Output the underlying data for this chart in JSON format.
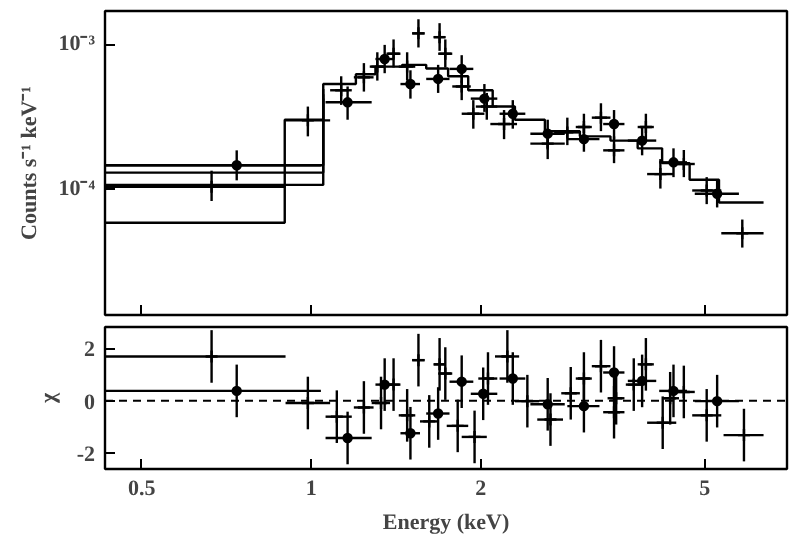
{
  "chart_data": [
    {
      "type": "scatter",
      "ylabel": "Counts s⁻¹ keV⁻¹",
      "log": "xy",
      "tick_labels": "y",
      "xlim": [
        0.43,
        7.0
      ],
      "xticks": [
        0.5,
        1,
        2,
        5
      ],
      "ylim": [
        1.33e-05,
        0.0017
      ],
      "yticks": [
        {
          "value": 0.001,
          "label": "10⁻³"
        },
        {
          "value": 0.0001,
          "label": "10⁻⁴"
        }
      ],
      "series": [
        {
          "type": "step",
          "color": "#000000",
          "x": [
            0.43,
            0.897,
            1.05,
            1.2,
            1.3,
            1.45,
            1.6,
            1.75,
            1.9,
            2.1,
            2.3,
            2.6,
            3.0,
            3.4,
            3.8,
            4.2,
            4.7,
            5.3,
            6.36
          ],
          "values": [
            5.8e-05,
            0.0003,
            0.00053,
            0.00062,
            0.0007,
            0.00072,
            0.00068,
            0.0006,
            0.00048,
            0.00037,
            0.0003,
            0.00025,
            0.00023,
            0.000215,
            0.00019,
            0.00015,
            0.000115,
            8e-05,
            8e-05
          ]
        },
        {
          "type": "step",
          "color": "#000000",
          "x": [
            0.43,
            1.05
          ],
          "values": [
            0.000106,
            0.00049
          ]
        },
        {
          "type": "step",
          "color": "#000000",
          "x": [
            0.43,
            1.05
          ],
          "values": [
            0.000129,
            0.00045
          ]
        },
        {
          "type": "step",
          "color": "#000000",
          "x": [
            0.43,
            1.05
          ],
          "values": [
            0.000145,
            0.00042
          ]
        },
        {
          "type": "scatter",
          "marker": "circle",
          "color": "#000000",
          "x": [
            0.737,
            1.16,
            1.35,
            1.5,
            1.68,
            1.85,
            2.03,
            2.28,
            2.63,
            3.05,
            3.45,
            3.87,
            4.4,
            5.26
          ],
          "values": [
            0.000145,
            0.000396,
            0.00079,
            0.00053,
            0.000575,
            0.000675,
            0.00042,
            0.00033,
            0.00024,
            0.00022,
            0.00028,
            0.000215,
            0.000152,
            9.2e-05
          ],
          "errors": [
            [
              0.000114,
              0.000184
            ],
            [
              0.0003,
              0.00051
            ],
            [
              0.00063,
              0.00099
            ],
            [
              0.00042,
              0.00066
            ],
            [
              0.00046,
              0.00072
            ],
            [
              0.00054,
              0.00084
            ],
            [
              0.00034,
              0.00053
            ],
            [
              0.00026,
              0.00041
            ],
            [
              0.00019,
              0.0003
            ],
            [
              0.00018,
              0.00028
            ],
            [
              0.00022,
              0.00035
            ],
            [
              0.00017,
              0.00027
            ],
            [
              0.00012,
              0.00019
            ],
            [
              7.4e-05,
              0.000115
            ]
          ],
          "xerrors": [
            [
              0.43,
              1.04
            ],
            [
              1.06,
              1.28
            ],
            [
              1.3,
              1.4
            ],
            [
              1.44,
              1.56
            ],
            [
              1.6,
              1.76
            ],
            [
              1.76,
              1.94
            ],
            [
              1.92,
              2.14
            ],
            [
              2.16,
              2.4
            ],
            [
              2.45,
              2.82
            ],
            [
              2.85,
              3.25
            ],
            [
              3.3,
              3.6
            ],
            [
              3.65,
              4.1
            ],
            [
              4.15,
              4.65
            ],
            [
              4.8,
              5.75
            ]
          ]
        },
        {
          "type": "scatter",
          "marker": "cross",
          "color": "#000000",
          "x": [
            0.665,
            0.986,
            1.13,
            1.24,
            1.31,
            1.4,
            1.48,
            1.55,
            1.69,
            1.73,
            1.85,
            1.94,
            2.05,
            2.2,
            2.63,
            2.85,
            3.05,
            3.27,
            3.45,
            3.93,
            4.17,
            4.59,
            5.04,
            5.83
          ],
          "values": [
            0.000103,
            0.000297,
            0.00048,
            0.00059,
            0.0007,
            0.00086,
            0.0007,
            0.00119,
            0.00112,
            0.00086,
            0.00051,
            0.00033,
            0.00037,
            0.00028,
            0.000205,
            0.000245,
            0.000267,
            0.00031,
            0.000184,
            0.000267,
            0.000126,
            0.000148,
            9.7e-05,
            4.9e-05
          ],
          "errors": [
            [
              8.2e-05,
              0.000133
            ],
            [
              0.00023,
              0.00037
            ],
            [
              0.00038,
              0.0006
            ],
            [
              0.00047,
              0.00074
            ],
            [
              0.00056,
              0.00088
            ],
            [
              0.00069,
              0.00108
            ],
            [
              0.00056,
              0.00088
            ],
            [
              0.00095,
              0.00149
            ],
            [
              0.0009,
              0.0014
            ],
            [
              0.00069,
              0.00108
            ],
            [
              0.00041,
              0.00064
            ],
            [
              0.00026,
              0.00041
            ],
            [
              0.0003,
              0.00046
            ],
            [
              0.00022,
              0.00035
            ],
            [
              0.00016,
              0.00026
            ],
            [
              0.0002,
              0.00031
            ],
            [
              0.00021,
              0.00033
            ],
            [
              0.00025,
              0.00039
            ],
            [
              0.00015,
              0.00023
            ],
            [
              0.00021,
              0.00033
            ],
            [
              0.0001,
              0.00016
            ],
            [
              0.00012,
              0.000185
            ],
            [
              7.8e-05,
              0.00012
            ],
            [
              3.9e-05,
              6.1e-05
            ]
          ],
          "xerrors": [
            [
              0.43,
              0.9
            ],
            [
              0.9,
              1.08
            ],
            [
              1.08,
              1.18
            ],
            [
              1.19,
              1.29
            ],
            [
              1.27,
              1.35
            ],
            [
              1.36,
              1.44
            ],
            [
              1.43,
              1.53
            ],
            [
              1.51,
              1.59
            ],
            [
              1.65,
              1.73
            ],
            [
              1.68,
              1.78
            ],
            [
              1.78,
              1.92
            ],
            [
              1.85,
              2.03
            ],
            [
              1.96,
              2.14
            ],
            [
              2.08,
              2.32
            ],
            [
              2.45,
              2.82
            ],
            [
              2.7,
              3.0
            ],
            [
              2.95,
              3.15
            ],
            [
              3.15,
              3.4
            ],
            [
              3.3,
              3.6
            ],
            [
              3.8,
              4.06
            ],
            [
              3.95,
              4.4
            ],
            [
              4.4,
              4.8
            ],
            [
              4.75,
              5.35
            ],
            [
              5.35,
              6.36
            ]
          ]
        }
      ]
    },
    {
      "type": "scatter",
      "xlabel": "Energy (keV)",
      "ylabel": "χ",
      "log": "x",
      "xlim": [
        0.43,
        7.0
      ],
      "xticks": [
        0.5,
        1,
        2,
        5
      ],
      "ylim": [
        -2.6,
        2.8
      ],
      "yticks": [
        -2,
        0,
        2
      ],
      "ref_lines": [
        {
          "axis": "y",
          "value": 0,
          "line_style": "dashed",
          "color": "#000000"
        }
      ],
      "series": [
        {
          "type": "scatter",
          "marker": "circle",
          "color": "#000000",
          "x": [
            0.737,
            1.16,
            1.35,
            1.5,
            1.68,
            1.85,
            2.02,
            2.28,
            2.63,
            3.05,
            3.45,
            3.87,
            4.4,
            5.26
          ],
          "values": [
            0.37,
            -1.42,
            0.61,
            -1.24,
            -0.49,
            0.72,
            0.26,
            0.84,
            -0.14,
            -0.21,
            1.07,
            0.75,
            0.37,
            -0.02
          ],
          "errors": [
            1,
            1,
            1,
            1,
            1,
            1,
            1,
            1,
            1,
            1,
            1,
            1,
            1,
            1
          ],
          "xerrors": [
            [
              0.43,
              1.04
            ],
            [
              1.06,
              1.28
            ],
            [
              1.3,
              1.4
            ],
            [
              1.44,
              1.56
            ],
            [
              1.6,
              1.76
            ],
            [
              1.76,
              1.94
            ],
            [
              1.92,
              2.14
            ],
            [
              2.16,
              2.4
            ],
            [
              2.45,
              2.82
            ],
            [
              2.85,
              3.25
            ],
            [
              3.3,
              3.6
            ],
            [
              3.65,
              4.1
            ],
            [
              4.15,
              4.65
            ],
            [
              4.8,
              5.75
            ]
          ]
        },
        {
          "type": "scatter",
          "marker": "cross",
          "color": "#000000",
          "x": [
            0.665,
            0.986,
            1.11,
            1.24,
            1.33,
            1.4,
            1.48,
            1.55,
            1.62,
            1.69,
            1.73,
            1.82,
            1.95,
            2.06,
            2.23,
            2.42,
            2.66,
            2.89,
            3.05,
            3.27,
            3.48,
            3.45,
            3.93,
            3.74,
            4.21,
            4.59,
            4.34,
            5.04,
            5.87
          ],
          "values": [
            1.68,
            -0.09,
            -0.61,
            -0.26,
            -0.09,
            0.61,
            -0.56,
            1.54,
            -0.79,
            1.38,
            1.03,
            -0.96,
            -1.38,
            0.84,
            1.68,
            -0.02,
            -0.72,
            0.28,
            0.84,
            1.31,
            0.09,
            -0.44,
            1.38,
            0.61,
            -0.84,
            0.33,
            0.09,
            -0.56,
            -1.31
          ],
          "errors": [
            1,
            1,
            1,
            1,
            1,
            1,
            1,
            1,
            1,
            1,
            1,
            1,
            1,
            1,
            1,
            1,
            1,
            1,
            1,
            1,
            1,
            1,
            1,
            1,
            1,
            1,
            1,
            1,
            1
          ],
          "xerrors": [
            [
              0.43,
              0.9
            ],
            [
              0.9,
              1.08
            ],
            [
              1.06,
              1.18
            ],
            [
              1.19,
              1.29
            ],
            [
              1.28,
              1.38
            ],
            [
              1.36,
              1.44
            ],
            [
              1.43,
              1.53
            ],
            [
              1.51,
              1.59
            ],
            [
              1.56,
              1.68
            ],
            [
              1.65,
              1.73
            ],
            [
              1.68,
              1.78
            ],
            [
              1.74,
              1.9
            ],
            [
              1.85,
              2.05
            ],
            [
              1.98,
              2.14
            ],
            [
              2.12,
              2.34
            ],
            [
              2.3,
              2.54
            ],
            [
              2.52,
              2.8
            ],
            [
              2.78,
              3.0
            ],
            [
              2.95,
              3.15
            ],
            [
              3.15,
              3.4
            ],
            [
              3.36,
              3.6
            ],
            [
              3.3,
              3.6
            ],
            [
              3.8,
              4.06
            ],
            [
              3.62,
              3.86
            ],
            [
              3.95,
              4.45
            ],
            [
              4.4,
              4.8
            ],
            [
              4.2,
              4.5
            ],
            [
              4.75,
              5.35
            ],
            [
              5.4,
              6.36
            ]
          ]
        }
      ]
    }
  ]
}
